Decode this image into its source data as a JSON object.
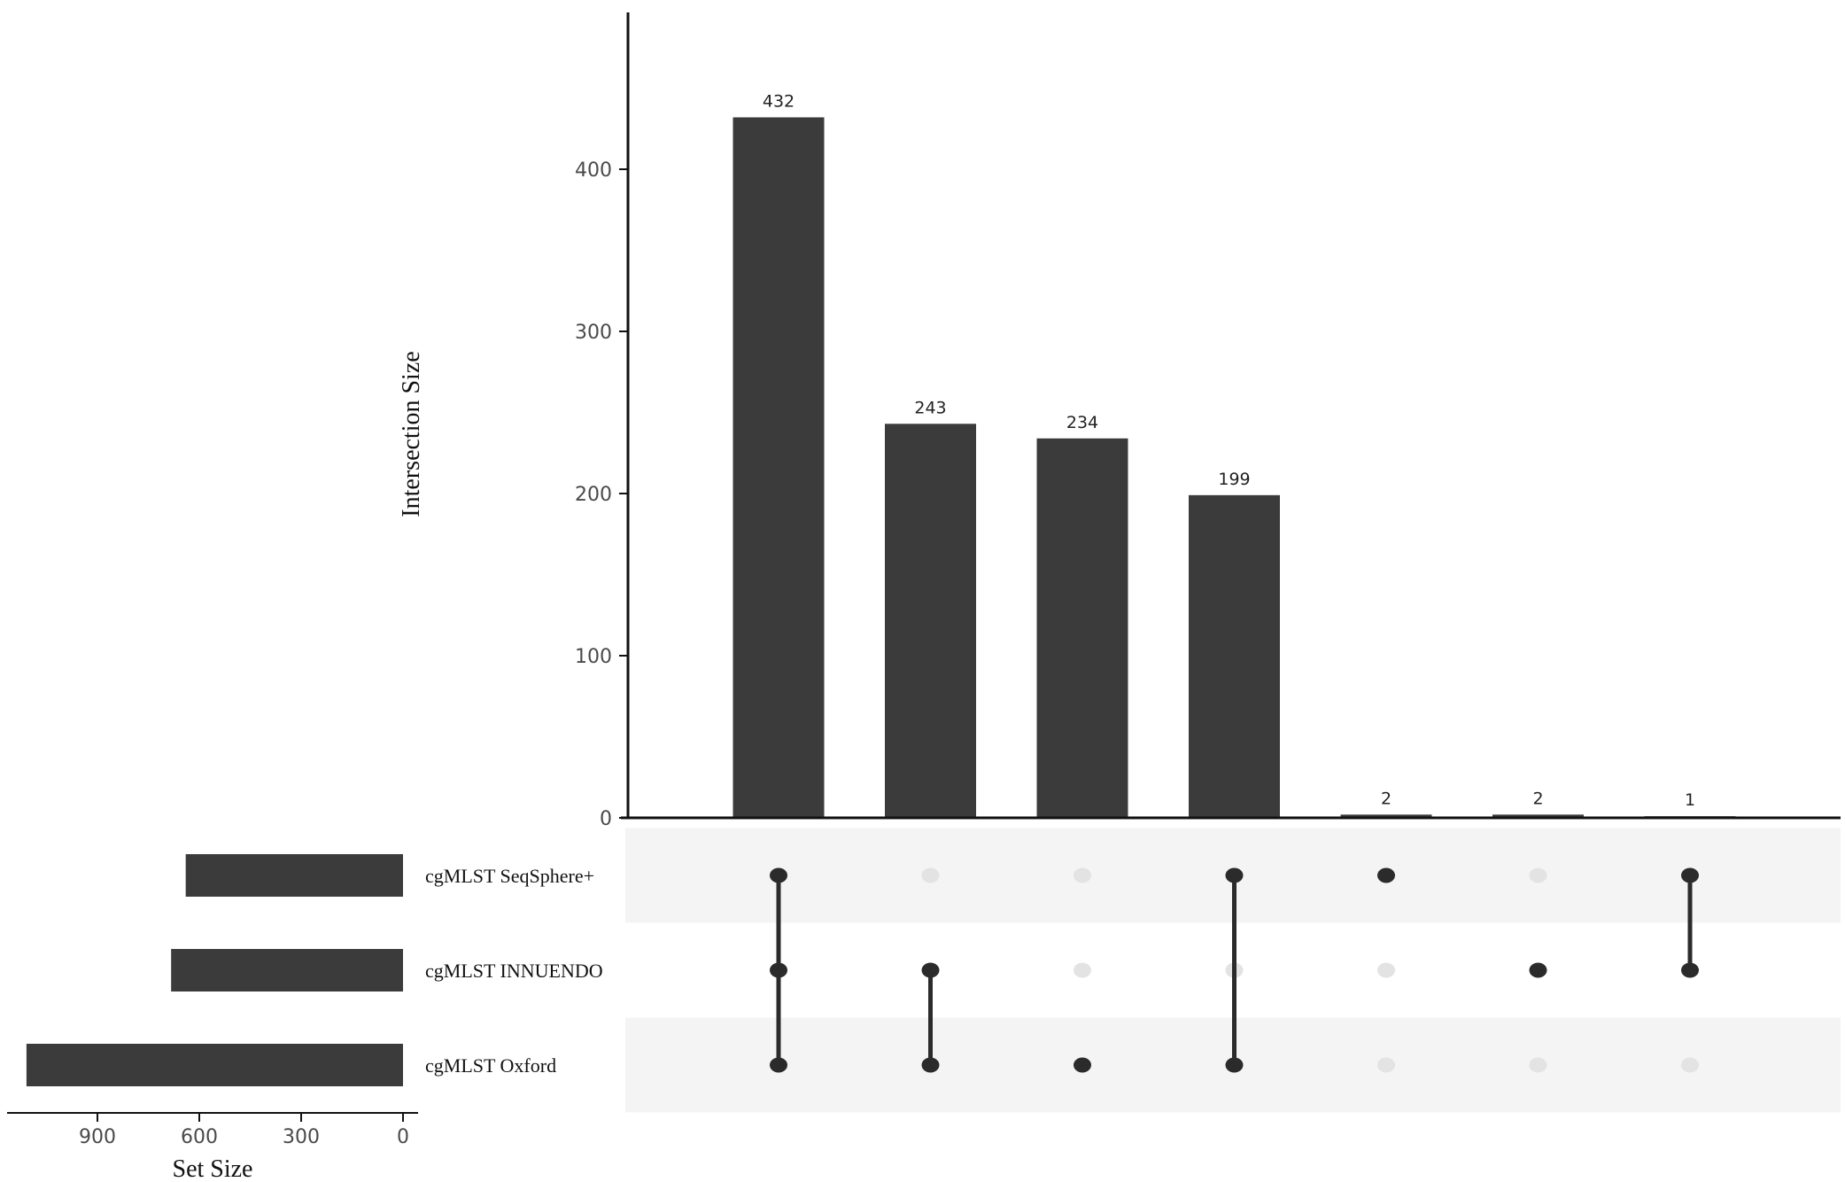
{
  "chart_data": {
    "type": "bar",
    "ylabel": "Intersection Size",
    "set_size_label": "Set Size",
    "y_ticks": [
      "0",
      "100",
      "200",
      "300",
      "400"
    ],
    "ylim": [
      0,
      460
    ],
    "set_size_ticks": [
      "900",
      "600",
      "300",
      "0"
    ],
    "set_size_lim": [
      0,
      1120
    ],
    "sets": [
      {
        "name": "cgMLST SeqSphere+",
        "size": 640
      },
      {
        "name": "cgMLST INNUENDO",
        "size": 683
      },
      {
        "name": "cgMLST Oxford",
        "size": 1109
      }
    ],
    "intersections": [
      {
        "value": 432,
        "label": "432",
        "members": [
          0,
          1,
          2
        ]
      },
      {
        "value": 243,
        "label": "243",
        "members": [
          1,
          2
        ]
      },
      {
        "value": 234,
        "label": "234",
        "members": [
          2
        ]
      },
      {
        "value": 199,
        "label": "199",
        "members": [
          0,
          2
        ]
      },
      {
        "value": 2,
        "label": "2",
        "members": [
          0
        ]
      },
      {
        "value": 2,
        "label": "2",
        "members": [
          1
        ]
      },
      {
        "value": 1,
        "label": "1",
        "members": [
          0,
          1
        ]
      }
    ],
    "grid": false,
    "colors": {
      "bar": "#3b3b3b",
      "dot_active": "#2b2b2b",
      "dot_inactive": "#e3e3e3",
      "stripe": "#f4f4f4",
      "axis": "#111111"
    }
  }
}
